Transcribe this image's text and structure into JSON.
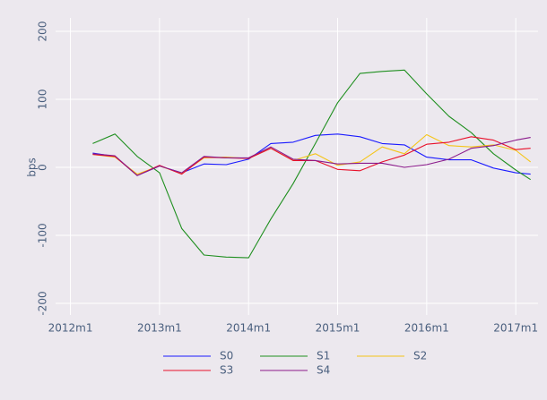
{
  "chart_data": {
    "type": "line",
    "ylabel": "bps",
    "x": [
      "2012m4",
      "2012m7",
      "2012m10",
      "2013m1",
      "2013m4",
      "2013m7",
      "2013m10",
      "2014m1",
      "2014m4",
      "2014m7",
      "2014m10",
      "2015m1",
      "2015m4",
      "2015m7",
      "2015m10",
      "2016m1",
      "2016m4",
      "2016m7",
      "2016m10",
      "2017m1",
      "2017m3"
    ],
    "series": [
      {
        "name": "S0",
        "color": "#1a1aff",
        "values": [
          21,
          16,
          -12,
          2,
          -8,
          5,
          4,
          12,
          35,
          37,
          47,
          49,
          45,
          35,
          33,
          15,
          11,
          11,
          -1,
          -8,
          -10
        ]
      },
      {
        "name": "S1",
        "color": "#1f8f1f",
        "values": [
          35,
          49,
          16,
          -8,
          -90,
          -129,
          -132,
          -133,
          -76,
          -24,
          35,
          95,
          138,
          141,
          143,
          108,
          75,
          51,
          20,
          -4,
          -18
        ]
      },
      {
        "name": "S2",
        "color": "#f5c518",
        "values": [
          19,
          15,
          -10,
          2,
          -9,
          14,
          15,
          13,
          28,
          10,
          20,
          3,
          8,
          30,
          20,
          48,
          32,
          30,
          33,
          25,
          8
        ]
      },
      {
        "name": "S3",
        "color": "#e8102a",
        "values": [
          19,
          16,
          -12,
          3,
          -10,
          15,
          14,
          13,
          28,
          10,
          10,
          -3,
          -5,
          8,
          18,
          34,
          37,
          45,
          40,
          26,
          28
        ]
      },
      {
        "name": "S4",
        "color": "#8b1a8b",
        "values": [
          20,
          17,
          -12,
          2,
          -8,
          16,
          14,
          14,
          30,
          12,
          10,
          5,
          6,
          6,
          0,
          4,
          12,
          28,
          32,
          40,
          44
        ]
      }
    ],
    "xlim": [
      "2011m11",
      "2017m4"
    ],
    "xticks": [
      "2012m1",
      "2013m1",
      "2014m1",
      "2015m1",
      "2016m1",
      "2017m1"
    ],
    "ylim": [
      -200,
      200
    ],
    "yticks": [
      -200,
      -100,
      0,
      100,
      200
    ],
    "grid": true,
    "legend": "bottom"
  }
}
